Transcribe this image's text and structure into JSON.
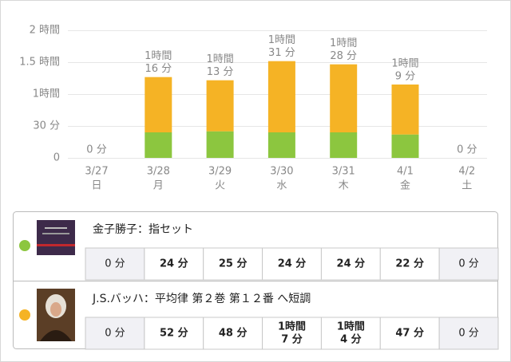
{
  "chart_data": {
    "type": "bar",
    "categories": [
      "3/27",
      "3/28",
      "3/29",
      "3/30",
      "3/31",
      "4/1",
      "4/2"
    ],
    "weekdays": [
      "日",
      "月",
      "火",
      "水",
      "木",
      "金",
      "土"
    ],
    "series": [
      {
        "name": "金子勝子：指セット",
        "color": "#8cc63f",
        "values": [
          0,
          24,
          25,
          24,
          24,
          22,
          0
        ]
      },
      {
        "name": "J.S.バッハ：平均律 第２巻 第１２番 へ短調",
        "color": "#f5b325",
        "values": [
          0,
          52,
          48,
          67,
          64,
          47,
          0
        ]
      }
    ],
    "total_labels": [
      [
        "0 分"
      ],
      [
        "1時間",
        "16 分"
      ],
      [
        "1時間",
        "13 分"
      ],
      [
        "1時間",
        "31 分"
      ],
      [
        "1時間",
        "28 分"
      ],
      [
        "1時間",
        "9 分"
      ],
      [
        "0 分"
      ]
    ],
    "ylim": [
      0,
      120
    ],
    "yticks": [
      0,
      {
        "value": 30,
        "label": "30 分"
      },
      {
        "value": 60,
        "label": "1時間"
      },
      {
        "value": 90,
        "label": "1.5 時間"
      },
      {
        "value": 120,
        "label": "2 時間"
      }
    ],
    "grid": true
  },
  "table": {
    "rows": [
      {
        "cells": [
          [
            "0 分"
          ],
          [
            "24 分"
          ],
          [
            "25 分"
          ],
          [
            "24 分"
          ],
          [
            "24 分"
          ],
          [
            "22 分"
          ],
          [
            "0 分"
          ]
        ]
      },
      {
        "cells": [
          [
            "0 分"
          ],
          [
            "52 分"
          ],
          [
            "48 分"
          ],
          [
            "1時間",
            "7 分"
          ],
          [
            "1時間",
            "4 分"
          ],
          [
            "47 分"
          ],
          [
            "0 分"
          ]
        ]
      }
    ]
  }
}
